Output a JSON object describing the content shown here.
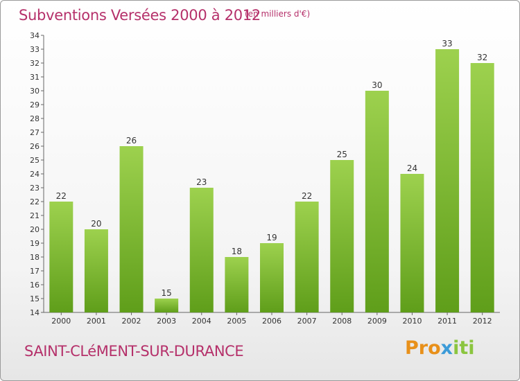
{
  "header": {
    "title": "Subventions Versées 2000 à 2012",
    "subtitle": "(en milliers d'€)"
  },
  "footer": {
    "commune": "SAINT-CLéMENT-SUR-DURANCE",
    "logo_parts": [
      "Pro",
      "x",
      "iti"
    ]
  },
  "colors": {
    "title": "#b5306a",
    "bar_light": "#9dd14e",
    "bar_dark": "#5f9e1a",
    "logo_orange": "#e8901a",
    "logo_blue": "#3c9bd8",
    "logo_green": "#8bc53f"
  },
  "chart_data": {
    "type": "bar",
    "title": "Subventions Versées 2000 à 2012",
    "categories": [
      "2000",
      "2001",
      "2002",
      "2003",
      "2004",
      "2005",
      "2006",
      "2007",
      "2008",
      "2009",
      "2010",
      "2011",
      "2012"
    ],
    "values": [
      22,
      20,
      26,
      15,
      23,
      18,
      19,
      22,
      25,
      30,
      24,
      33,
      32
    ],
    "ylim": [
      14,
      34
    ],
    "yticks": [
      14,
      15,
      16,
      17,
      18,
      19,
      20,
      21,
      22,
      23,
      24,
      25,
      26,
      27,
      28,
      29,
      30,
      31,
      32,
      33,
      34
    ],
    "grid": false,
    "data_labels": true
  }
}
